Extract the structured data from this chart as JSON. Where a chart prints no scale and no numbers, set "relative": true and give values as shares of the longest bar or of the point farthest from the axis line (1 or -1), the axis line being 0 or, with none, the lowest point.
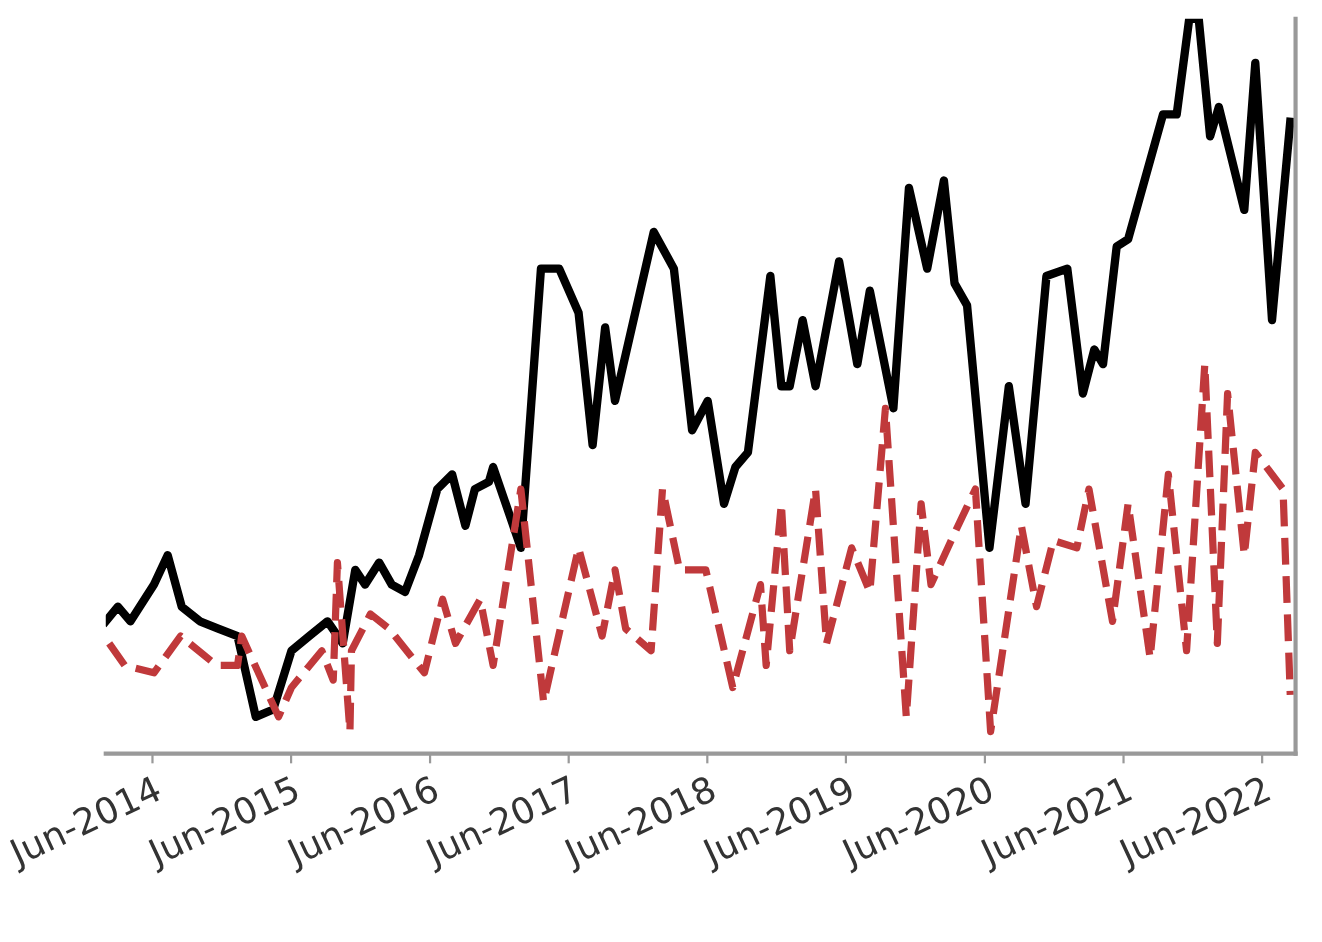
{
  "chart_data": {
    "type": "line",
    "relative": true,
    "xlim": [
      "2014-01-29",
      "2022-08-28"
    ],
    "xticks": [
      {
        "value": "2014-06-01",
        "label": "Jun-2014"
      },
      {
        "value": "2015-06-01",
        "label": "Jun-2015"
      },
      {
        "value": "2016-06-01",
        "label": "Jun-2016"
      },
      {
        "value": "2017-06-01",
        "label": "Jun-2017"
      },
      {
        "value": "2018-06-01",
        "label": "Jun-2018"
      },
      {
        "value": "2019-06-01",
        "label": "Jun-2019"
      },
      {
        "value": "2020-06-01",
        "label": "Jun-2020"
      },
      {
        "value": "2021-06-01",
        "label": "Jun-2021"
      },
      {
        "value": "2022-06-01",
        "label": "Jun-2022"
      }
    ],
    "series": [
      {
        "color": "#000000",
        "line_style": "solid",
        "x": [
          "2014-01-29",
          "2014-03-02",
          "2014-04-04",
          "2014-06-05",
          "2014-07-11",
          "2014-08-17",
          "2014-10-04",
          "2014-11-21",
          "2015-01-11",
          "2015-02-28",
          "2015-04-15",
          "2015-06-02",
          "2015-07-19",
          "2015-09-05",
          "2015-10-15",
          "2015-11-17",
          "2015-12-13",
          "2016-01-19",
          "2016-02-21",
          "2016-03-27",
          "2016-05-03",
          "2016-06-20",
          "2016-07-29",
          "2016-09-02",
          "2016-09-27",
          "2016-11-03",
          "2016-11-14",
          "2017-01-26",
          "2017-03-20",
          "2017-05-07",
          "2017-06-27",
          "2017-08-03",
          "2017-09-05",
          "2017-10-01",
          "2018-01-11",
          "2018-03-05",
          "2018-04-22",
          "2018-06-02",
          "2018-07-15",
          "2018-08-14",
          "2018-09-16",
          "2018-11-14",
          "2018-12-13",
          "2019-01-04",
          "2019-02-07",
          "2019-03-13",
          "2019-05-14",
          "2019-07-01",
          "2019-08-03",
          "2019-10-04",
          "2019-11-14",
          "2020-01-01",
          "2020-02-14",
          "2020-03-13",
          "2020-04-15",
          "2020-06-13",
          "2020-08-03",
          "2020-09-16",
          "2020-11-10",
          "2021-01-04",
          "2021-02-14",
          "2021-03-16",
          "2021-04-08",
          "2021-05-14",
          "2021-06-13",
          "2021-09-13",
          "2021-10-19",
          "2021-11-21",
          "2021-12-16",
          "2022-01-15",
          "2022-02-07",
          "2022-04-15",
          "2022-05-14",
          "2022-06-27",
          "2022-08-14"
        ],
        "values": [
          0.18,
          0.2,
          0.18,
          0.23,
          0.27,
          0.2,
          0.18,
          0.17,
          0.16,
          0.05,
          0.06,
          0.14,
          0.16,
          0.18,
          0.15,
          0.25,
          0.23,
          0.26,
          0.23,
          0.22,
          0.27,
          0.36,
          0.38,
          0.31,
          0.36,
          0.37,
          0.39,
          0.28,
          0.66,
          0.66,
          0.6,
          0.42,
          0.58,
          0.48,
          0.71,
          0.66,
          0.44,
          0.48,
          0.34,
          0.39,
          0.41,
          0.65,
          0.5,
          0.5,
          0.59,
          0.5,
          0.67,
          0.53,
          0.63,
          0.47,
          0.77,
          0.66,
          0.78,
          0.64,
          0.61,
          0.28,
          0.5,
          0.34,
          0.65,
          0.66,
          0.49,
          0.55,
          0.53,
          0.69,
          0.7,
          0.87,
          0.87,
          1.0,
          1.0,
          0.84,
          0.88,
          0.74,
          0.94,
          0.59,
          0.86
        ]
      },
      {
        "color": "#c0393b",
        "line_style": "dashed",
        "x": [
          "2014-02-07",
          "2014-03-20",
          "2014-06-05",
          "2014-08-14",
          "2014-11-17",
          "2015-01-11",
          "2015-01-22",
          "2015-04-29",
          "2015-06-02",
          "2015-08-21",
          "2015-09-20",
          "2015-10-01",
          "2015-11-03",
          "2015-11-07",
          "2015-12-27",
          "2016-02-14",
          "2016-05-17",
          "2016-07-04",
          "2016-08-07",
          "2016-10-11",
          "2016-11-14",
          "2017-01-26",
          "2017-03-27",
          "2017-06-27",
          "2017-08-28",
          "2017-10-01",
          "2017-10-29",
          "2018-01-04",
          "2018-02-03",
          "2018-03-20",
          "2018-05-28",
          "2018-08-07",
          "2018-10-19",
          "2018-11-03",
          "2018-12-13",
          "2019-01-04",
          "2019-03-13",
          "2019-04-11",
          "2019-06-16",
          "2019-08-03",
          "2019-09-13",
          "2019-11-07",
          "2019-12-16",
          "2020-01-11",
          "2020-03-13",
          "2020-05-07",
          "2020-06-16",
          "2020-09-05",
          "2020-10-15",
          "2020-11-28",
          "2021-01-29",
          "2021-03-02",
          "2021-05-03",
          "2021-06-13",
          "2021-08-10",
          "2021-09-27",
          "2021-11-14",
          "2022-01-01",
          "2022-02-03",
          "2022-03-02",
          "2022-04-15",
          "2022-05-14",
          "2022-07-26",
          "2022-08-14"
        ],
        "values": [
          0.15,
          0.12,
          0.11,
          0.16,
          0.12,
          0.12,
          0.16,
          0.05,
          0.09,
          0.14,
          0.1,
          0.26,
          0.03,
          0.14,
          0.19,
          0.17,
          0.11,
          0.21,
          0.15,
          0.21,
          0.12,
          0.36,
          0.07,
          0.28,
          0.16,
          0.25,
          0.17,
          0.14,
          0.36,
          0.25,
          0.25,
          0.09,
          0.23,
          0.12,
          0.34,
          0.14,
          0.36,
          0.15,
          0.28,
          0.22,
          0.47,
          0.05,
          0.34,
          0.23,
          0.3,
          0.36,
          0.03,
          0.31,
          0.2,
          0.29,
          0.28,
          0.36,
          0.18,
          0.34,
          0.13,
          0.38,
          0.14,
          0.53,
          0.15,
          0.49,
          0.27,
          0.41,
          0.36,
          0.08
        ]
      }
    ]
  }
}
